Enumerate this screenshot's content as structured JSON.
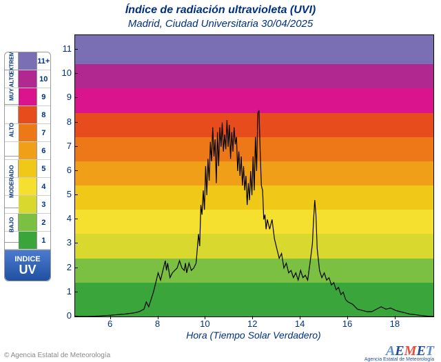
{
  "title": "Índice de radiación ultravioleta (UVI)",
  "subtitle": "Madrid, Ciudad Universitaria 30/04/2025",
  "x_label": "Hora (Tiempo Solar Verdadero)",
  "y_axis": {
    "min": 0,
    "max": 11.6,
    "ticks": [
      0,
      1,
      2,
      3,
      4,
      5,
      6,
      7,
      8,
      9,
      10,
      11
    ]
  },
  "x_axis": {
    "min": 4.5,
    "max": 19.6,
    "ticks": [
      6,
      8,
      10,
      12,
      14,
      16,
      18
    ]
  },
  "bands": [
    {
      "from": 0,
      "to": 1.4,
      "color": "#3aa53a"
    },
    {
      "from": 1.4,
      "to": 2.4,
      "color": "#7bc043"
    },
    {
      "from": 2.4,
      "to": 3.4,
      "color": "#d8d82e"
    },
    {
      "from": 3.4,
      "to": 4.4,
      "color": "#f5e030"
    },
    {
      "from": 4.4,
      "to": 5.4,
      "color": "#f0c818"
    },
    {
      "from": 5.4,
      "to": 6.4,
      "color": "#f0a018"
    },
    {
      "from": 6.4,
      "to": 7.4,
      "color": "#ed7818"
    },
    {
      "from": 7.4,
      "to": 8.4,
      "color": "#e74c1c"
    },
    {
      "from": 8.4,
      "to": 9.4,
      "color": "#d9148c"
    },
    {
      "from": 9.4,
      "to": 10.4,
      "color": "#b02890"
    },
    {
      "from": 10.4,
      "to": 11.6,
      "color": "#7a6fb5"
    }
  ],
  "legend": {
    "categories": [
      {
        "label": "EXTREMO",
        "rows": 1
      },
      {
        "label": "MUY ALTO",
        "rows": 2
      },
      {
        "label": "ALTO",
        "rows": 3
      },
      {
        "label": "MODERADO",
        "rows": 3
      },
      {
        "label": "BAJO",
        "rows": 2
      }
    ],
    "rows": [
      {
        "color": "#7a6fb5",
        "num": "11+"
      },
      {
        "color": "#b02890",
        "num": "10"
      },
      {
        "color": "#d9148c",
        "num": "9"
      },
      {
        "color": "#e74c1c",
        "num": "8"
      },
      {
        "color": "#ed7818",
        "num": "7"
      },
      {
        "color": "#f0a018",
        "num": "6"
      },
      {
        "color": "#f0c818",
        "num": "5"
      },
      {
        "color": "#f5e030",
        "num": "4"
      },
      {
        "color": "#d8d82e",
        "num": "3"
      },
      {
        "color": "#7bc043",
        "num": "2"
      },
      {
        "color": "#3aa53a",
        "num": "1"
      }
    ],
    "uv_top": "INDICE",
    "uv_bottom": "UV"
  },
  "footer_copy": "© Agencia Estatal de Meteorología",
  "footer_logo": "AEMET",
  "footer_logo_sub": "Agencia Estatal de Meteorología",
  "chart": {
    "line_color": "#000000",
    "line_width": 1.2,
    "data": [
      [
        4.5,
        0.0
      ],
      [
        5.0,
        0.0
      ],
      [
        5.5,
        0.02
      ],
      [
        6.0,
        0.05
      ],
      [
        6.3,
        0.08
      ],
      [
        6.6,
        0.1
      ],
      [
        7.0,
        0.15
      ],
      [
        7.2,
        0.2
      ],
      [
        7.4,
        0.3
      ],
      [
        7.5,
        0.6
      ],
      [
        7.6,
        0.4
      ],
      [
        7.8,
        1.0
      ],
      [
        7.9,
        1.4
      ],
      [
        8.0,
        1.8
      ],
      [
        8.1,
        1.5
      ],
      [
        8.2,
        1.9
      ],
      [
        8.3,
        2.3
      ],
      [
        8.35,
        1.9
      ],
      [
        8.4,
        2.2
      ],
      [
        8.5,
        1.6
      ],
      [
        8.6,
        1.8
      ],
      [
        8.7,
        1.9
      ],
      [
        8.8,
        2.0
      ],
      [
        8.9,
        2.3
      ],
      [
        9.0,
        2.0
      ],
      [
        9.1,
        1.9
      ],
      [
        9.15,
        2.2
      ],
      [
        9.2,
        1.8
      ],
      [
        9.3,
        2.2
      ],
      [
        9.4,
        1.9
      ],
      [
        9.5,
        2.0
      ],
      [
        9.6,
        2.2
      ],
      [
        9.7,
        3.4
      ],
      [
        9.75,
        2.9
      ],
      [
        9.8,
        4.6
      ],
      [
        9.85,
        4.2
      ],
      [
        9.9,
        5.2
      ],
      [
        9.95,
        4.4
      ],
      [
        10.0,
        6.2
      ],
      [
        10.05,
        5.0
      ],
      [
        10.1,
        6.5
      ],
      [
        10.15,
        5.6
      ],
      [
        10.2,
        7.2
      ],
      [
        10.25,
        6.4
      ],
      [
        10.3,
        7.8
      ],
      [
        10.35,
        6.6
      ],
      [
        10.4,
        7.3
      ],
      [
        10.45,
        5.5
      ],
      [
        10.5,
        7.6
      ],
      [
        10.55,
        6.2
      ],
      [
        10.6,
        7.8
      ],
      [
        10.65,
        7.0
      ],
      [
        10.7,
        8.0
      ],
      [
        10.75,
        6.8
      ],
      [
        10.8,
        7.5
      ],
      [
        10.85,
        6.9
      ],
      [
        10.9,
        8.1
      ],
      [
        10.95,
        7.0
      ],
      [
        11.0,
        7.9
      ],
      [
        11.05,
        6.5
      ],
      [
        11.1,
        7.6
      ],
      [
        11.15,
        6.8
      ],
      [
        11.2,
        7.8
      ],
      [
        11.25,
        7.1
      ],
      [
        11.3,
        7.4
      ],
      [
        11.35,
        6.0
      ],
      [
        11.4,
        6.8
      ],
      [
        11.45,
        5.8
      ],
      [
        11.5,
        6.6
      ],
      [
        11.55,
        5.4
      ],
      [
        11.6,
        6.2
      ],
      [
        11.65,
        5.2
      ],
      [
        11.7,
        5.8
      ],
      [
        11.75,
        4.6
      ],
      [
        11.8,
        5.5
      ],
      [
        11.85,
        4.8
      ],
      [
        11.9,
        6.0
      ],
      [
        11.95,
        5.0
      ],
      [
        12.0,
        6.6
      ],
      [
        12.05,
        5.2
      ],
      [
        12.1,
        7.4
      ],
      [
        12.15,
        6.0
      ],
      [
        12.2,
        8.4
      ],
      [
        12.25,
        8.5
      ],
      [
        12.3,
        6.8
      ],
      [
        12.35,
        5.4
      ],
      [
        12.4,
        5.2
      ],
      [
        12.45,
        4.0
      ],
      [
        12.5,
        4.2
      ],
      [
        12.55,
        3.6
      ],
      [
        12.6,
        4.0
      ],
      [
        12.7,
        3.6
      ],
      [
        12.8,
        4.0
      ],
      [
        12.9,
        3.2
      ],
      [
        13.0,
        2.8
      ],
      [
        13.1,
        2.4
      ],
      [
        13.2,
        2.6
      ],
      [
        13.3,
        2.0
      ],
      [
        13.4,
        2.2
      ],
      [
        13.5,
        1.8
      ],
      [
        13.6,
        1.9
      ],
      [
        13.7,
        1.6
      ],
      [
        13.8,
        1.8
      ],
      [
        13.9,
        1.5
      ],
      [
        14.0,
        1.9
      ],
      [
        14.1,
        1.6
      ],
      [
        14.2,
        1.7
      ],
      [
        14.3,
        1.5
      ],
      [
        14.4,
        2.2
      ],
      [
        14.5,
        3.0
      ],
      [
        14.55,
        4.0
      ],
      [
        14.6,
        4.8
      ],
      [
        14.65,
        4.2
      ],
      [
        14.7,
        2.8
      ],
      [
        14.8,
        1.9
      ],
      [
        14.9,
        1.6
      ],
      [
        15.0,
        1.8
      ],
      [
        15.1,
        1.5
      ],
      [
        15.2,
        1.6
      ],
      [
        15.3,
        1.3
      ],
      [
        15.4,
        1.4
      ],
      [
        15.5,
        1.1
      ],
      [
        15.6,
        1.2
      ],
      [
        15.7,
        0.9
      ],
      [
        15.8,
        1.0
      ],
      [
        15.9,
        0.7
      ],
      [
        16.0,
        0.6
      ],
      [
        16.2,
        0.5
      ],
      [
        16.4,
        0.3
      ],
      [
        16.6,
        0.25
      ],
      [
        16.8,
        0.2
      ],
      [
        17.0,
        0.2
      ],
      [
        17.2,
        0.3
      ],
      [
        17.4,
        0.4
      ],
      [
        17.6,
        0.3
      ],
      [
        17.8,
        0.35
      ],
      [
        18.0,
        0.25
      ],
      [
        18.2,
        0.2
      ],
      [
        18.4,
        0.15
      ],
      [
        18.6,
        0.1
      ],
      [
        18.8,
        0.08
      ],
      [
        19.0,
        0.05
      ],
      [
        19.3,
        0.02
      ],
      [
        19.6,
        0.0
      ]
    ]
  }
}
